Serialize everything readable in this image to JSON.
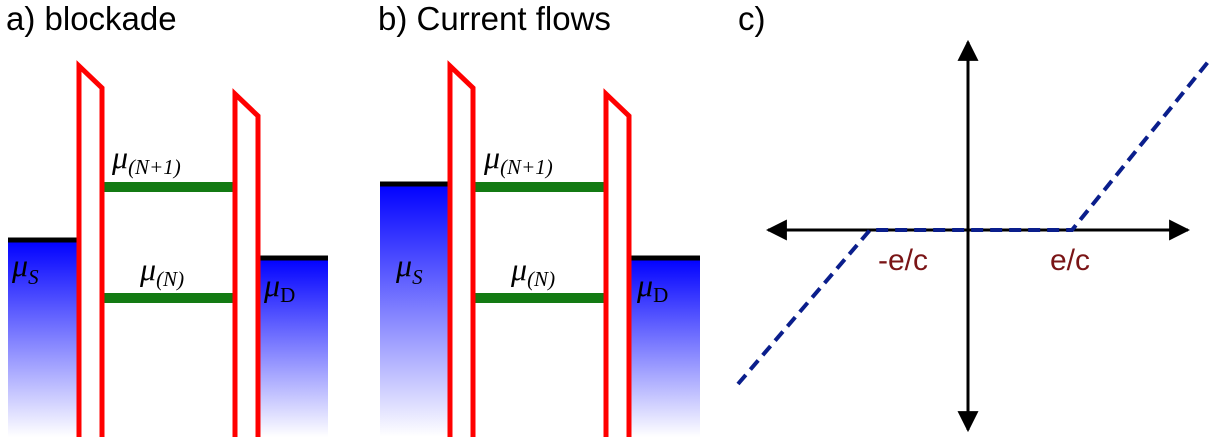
{
  "panels": [
    {
      "label": "a) blockade",
      "levels": [
        {
          "symbol": "μ",
          "sub": "(N+1)"
        },
        {
          "symbol": "μ",
          "sub": "(N)"
        }
      ],
      "source": {
        "symbol": "μ",
        "sub": "S"
      },
      "drain": {
        "symbol": "μ",
        "sub": "D"
      }
    },
    {
      "label": "b) Current flows",
      "levels": [
        {
          "symbol": "μ",
          "sub": "(N+1)"
        },
        {
          "symbol": "μ",
          "sub": "(N)"
        }
      ],
      "source": {
        "symbol": "μ",
        "sub": "S"
      },
      "drain": {
        "symbol": "μ",
        "sub": "D"
      }
    },
    {
      "label": "c)",
      "tick_labels": [
        "-e/c",
        "e/c"
      ]
    }
  ]
}
